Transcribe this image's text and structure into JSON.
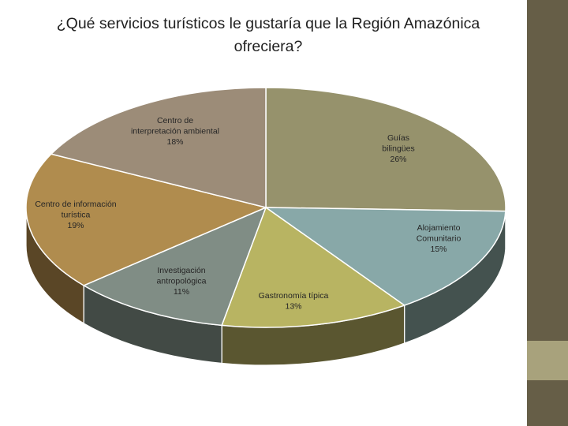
{
  "chart_data": {
    "type": "pie",
    "title": "¿Qué servicios turísticos le gustaría que la Región Amazónica ofreciera?",
    "slices": [
      {
        "label": "Guías bilingües",
        "value": 26,
        "display": "26%",
        "color": "#96926c",
        "side": "#5e5a3c"
      },
      {
        "label": "Alojamiento Comunitario",
        "value": 15,
        "display": "15%",
        "color": "#88a8a8",
        "side": "#44524f"
      },
      {
        "label": "Gastronomía típica",
        "value": 13,
        "display": "13%",
        "color": "#b8b462",
        "side": "#5a5630"
      },
      {
        "label": "Investigación antropológica",
        "value": 11,
        "display": "11%",
        "color": "#808d85",
        "side": "#424a45"
      },
      {
        "label": "Centro de información turística",
        "value": 19,
        "display": "19%",
        "color": "#b08c4e",
        "side": "#5a4626"
      },
      {
        "label": "Centro de interpretación ambiental",
        "value": 18,
        "display": "18%",
        "color": "#9c8c78",
        "side": "#4e4538"
      }
    ]
  }
}
